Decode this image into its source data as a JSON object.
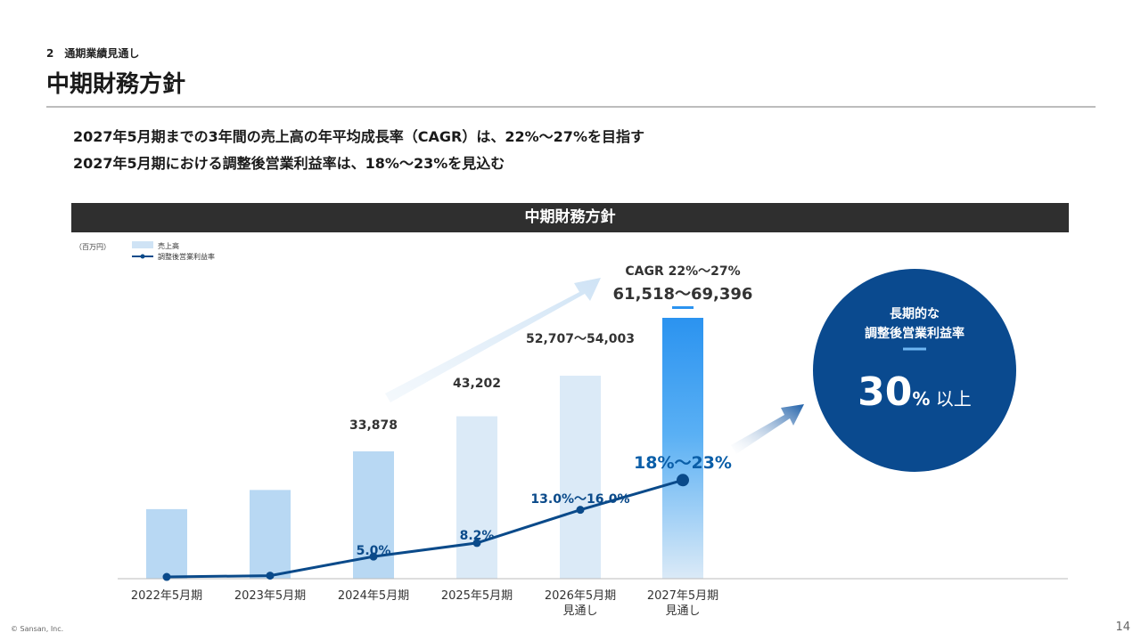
{
  "header": {
    "section": "2　通期業績見通し",
    "title": "中期財務方針"
  },
  "lead": {
    "line1": "2027年5月期までの3年間の売上高の年平均成長率（CAGR）は、22%～27%を目指す",
    "line2": "2027年5月期における調整後営業利益率は、18%～23%を見込む"
  },
  "banner": "中期財務方針",
  "chart_data": {
    "type": "bar",
    "unit": "（百万円）",
    "legend": [
      {
        "name": "売上高",
        "kind": "bar",
        "color": "#cfe3f5"
      },
      {
        "name": "調整後営業利益率",
        "kind": "line",
        "color": "#0a4a8a"
      }
    ],
    "categories": [
      [
        "2022年5月期"
      ],
      [
        "2023年5月期"
      ],
      [
        "2024年5月期"
      ],
      [
        "2025年5月期"
      ],
      [
        "2026年5月期",
        "見通し"
      ],
      [
        "2027年5月期",
        "見通し"
      ]
    ],
    "series": [
      {
        "name": "売上高",
        "values": [
          18500,
          23600,
          33878,
          43202,
          54003,
          69396
        ],
        "labels": [
          "",
          "",
          "33,878",
          "43,202",
          "52,707～54,003",
          "61,518～69,396"
        ],
        "colors": [
          "#b8d8f3",
          "#b8d8f3",
          "#b8d8f3",
          "#dbeaf7",
          "#dbeaf7",
          "#2b93f0"
        ]
      },
      {
        "name": "調整後営業利益率",
        "values": [
          0.2,
          0.5,
          5.0,
          8.2,
          16.0,
          23.0
        ],
        "labels": [
          "",
          "",
          "5.0%",
          "8.2%",
          "13.0%～16.0%",
          "18%～23%"
        ]
      }
    ],
    "cagr_label": "CAGR 22%～27%",
    "ylim": [
      0,
      72000
    ],
    "grid": false
  },
  "callout": {
    "line1": "長期的な",
    "line2": "調整後営業利益率",
    "value": "30",
    "suffix": "%",
    "tail": " 以上",
    "color": "#0a4a8f"
  },
  "footer": {
    "copyright": "© Sansan,  Inc.",
    "page": "14"
  }
}
